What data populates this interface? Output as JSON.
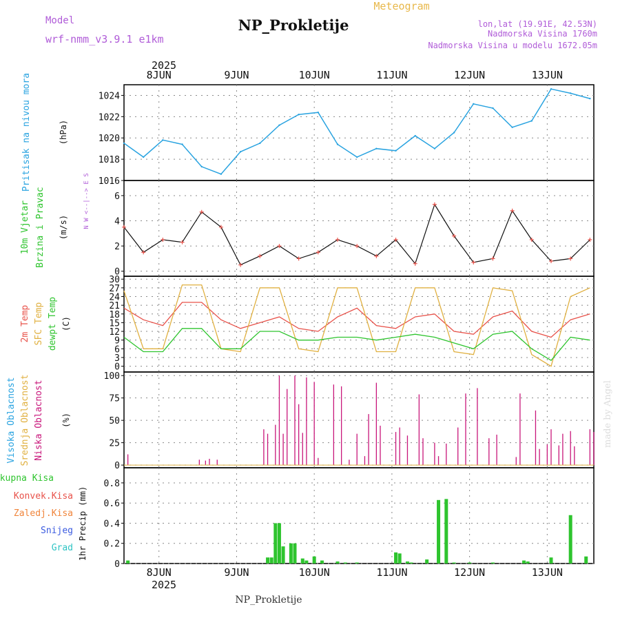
{
  "header": {
    "model_label": "Model",
    "model_name": "wrf-nmm_v3.9.1 e1km",
    "title": "NP_Prokletije",
    "meteogram_label": "Meteogram",
    "lonlat": "lon,lat (19.91E, 42.53N)",
    "altitude": "Nadmorska Visina 1760m",
    "model_altitude": "Nadmorska Visina u modelu 1672.05m",
    "footer_title": "NP_Prokletije",
    "watermark": "made by Angel",
    "year_top": "2025",
    "year_bottom": "2025"
  },
  "colors": {
    "pressure": "#29a3e0",
    "temp2m": "#e8524a",
    "sfctemp": "#e0b040",
    "dewpt": "#2ec42e",
    "low_cloud": "#c8157a",
    "mid_cloud": "#e0b040",
    "high_cloud": "#29a3e0",
    "precip": "#2ec42e",
    "label_purple": "#b05cd8"
  },
  "chart_data": [
    {
      "type": "line",
      "panel": "pressure",
      "label_left": "Pritisak na nivou mora",
      "unit": "(hPa)",
      "ylim": [
        1016,
        1025
      ],
      "yticks": [
        1016,
        1018,
        1020,
        1022,
        1024
      ],
      "x_days": [
        0,
        0.25,
        0.5,
        0.75,
        1.0,
        1.25,
        1.5,
        1.75,
        2.0,
        2.25,
        2.5,
        2.75,
        3.0,
        3.25,
        3.5,
        3.75,
        4.0,
        4.25,
        4.5,
        4.75,
        5.0,
        5.25,
        5.5,
        5.75,
        6.0
      ],
      "values": [
        1019.5,
        1018.2,
        1019.8,
        1019.4,
        1017.3,
        1016.6,
        1018.7,
        1019.5,
        1021.2,
        1022.2,
        1022.4,
        1019.4,
        1018.2,
        1019.0,
        1018.8,
        1020.2,
        1019.0,
        1020.5,
        1023.2,
        1022.8,
        1021.0,
        1021.6,
        1024.6,
        1024.2,
        1023.7
      ]
    },
    {
      "type": "line",
      "panel": "wind",
      "label_left": "10m Vjetar",
      "label_left2": "Brzina i Pravac",
      "unit": "(m/s)",
      "compass": "N  W <--|--> E  S",
      "ylim": [
        -0.4,
        7.2
      ],
      "yticks": [
        0,
        2,
        4,
        6
      ],
      "x_days": [
        0,
        0.25,
        0.5,
        0.75,
        1.0,
        1.25,
        1.5,
        1.75,
        2.0,
        2.25,
        2.5,
        2.75,
        3.0,
        3.25,
        3.5,
        3.75,
        4.0,
        4.25,
        4.5,
        4.75,
        5.0,
        5.25,
        5.5,
        5.75,
        6.0
      ],
      "values": [
        3.5,
        1.5,
        2.5,
        2.3,
        4.7,
        3.5,
        0.5,
        1.2,
        2.0,
        1.0,
        1.5,
        2.5,
        2.0,
        1.2,
        2.5,
        0.6,
        5.3,
        2.8,
        0.7,
        1.0,
        4.8,
        2.5,
        0.8,
        1.0,
        2.5
      ]
    },
    {
      "type": "line",
      "panel": "temperature",
      "label_left": "2m Temp",
      "label_left2": "SFC Temp",
      "label_left3": "dewpt Temp",
      "unit": "(C)",
      "ylim": [
        -2,
        31
      ],
      "yticks": [
        0,
        3,
        6,
        9,
        12,
        15,
        18,
        21,
        24,
        27,
        30
      ],
      "x_days": [
        0,
        0.25,
        0.5,
        0.75,
        1.0,
        1.25,
        1.5,
        1.75,
        2.0,
        2.25,
        2.5,
        2.75,
        3.0,
        3.25,
        3.5,
        3.75,
        4.0,
        4.25,
        4.5,
        4.75,
        5.0,
        5.25,
        5.5,
        5.75,
        6.0
      ],
      "series": [
        {
          "name": "2m Temp",
          "values": [
            20,
            16,
            14,
            22,
            22,
            16,
            13,
            15,
            17,
            13,
            12,
            17,
            20,
            14,
            13,
            17,
            18,
            12,
            11,
            17,
            19,
            12,
            10,
            16,
            18
          ]
        },
        {
          "name": "SFC Temp",
          "values": [
            26,
            6,
            6,
            28,
            28,
            6,
            5,
            27,
            27,
            6,
            5,
            27,
            27,
            5,
            5,
            27,
            27,
            5,
            4,
            27,
            26,
            4,
            0,
            24,
            27
          ]
        },
        {
          "name": "dewpt Temp",
          "values": [
            10,
            5,
            5,
            13,
            13,
            6,
            6,
            12,
            12,
            9,
            9,
            10,
            10,
            9,
            10,
            11,
            10,
            8,
            6,
            11,
            12,
            6,
            2,
            10,
            9
          ]
        }
      ]
    },
    {
      "type": "bar",
      "panel": "cloud",
      "label_left": "Visoka Oblacnost",
      "label_left2": "Srednja Oblacnost",
      "label_left3": "Niska Oblacnost",
      "unit": "(%)",
      "ylim": [
        -3,
        104
      ],
      "yticks": [
        0,
        25,
        50,
        75,
        100
      ],
      "x_days": [
        0.05,
        0.97,
        1.05,
        1.1,
        1.2,
        1.8,
        1.85,
        1.95,
        2.0,
        2.05,
        2.1,
        2.2,
        2.25,
        2.3,
        2.35,
        2.45,
        2.5,
        2.7,
        2.8,
        2.9,
        3.0,
        3.1,
        3.15,
        3.25,
        3.3,
        3.5,
        3.55,
        3.65,
        3.8,
        3.85,
        4.0,
        4.05,
        4.15,
        4.3,
        4.4,
        4.55,
        4.7,
        4.8,
        5.05,
        5.1,
        5.3,
        5.35,
        5.45,
        5.5,
        5.6,
        5.65,
        5.75,
        5.8,
        6.0,
        6.05
      ],
      "values": [
        12,
        6,
        5,
        7,
        6,
        40,
        35,
        45,
        100,
        35,
        85,
        100,
        68,
        36,
        98,
        93,
        8,
        90,
        88,
        6,
        35,
        10,
        57,
        92,
        44,
        37,
        42,
        33,
        79,
        30,
        25,
        10,
        24,
        42,
        80,
        86,
        30,
        34,
        9,
        80,
        61,
        18,
        23,
        40,
        22,
        35,
        38,
        21,
        40,
        37
      ]
    },
    {
      "type": "bar",
      "panel": "precip",
      "label_left": "Ukupna Kisa",
      "label_left2": "Konvek.Kisa",
      "label_left3": "Zaledj.Kisa",
      "label_left4": "Snijeg",
      "label_left5": "Grad",
      "unit": "1hr Precip (mm)",
      "ylim": [
        0,
        0.95
      ],
      "yticks": [
        0,
        0.2,
        0.4,
        0.6,
        0.8
      ],
      "x_days": [
        0.05,
        1.85,
        1.9,
        1.95,
        2.0,
        2.05,
        2.15,
        2.2,
        2.3,
        2.35,
        2.45,
        2.55,
        2.75,
        2.85,
        3.0,
        3.5,
        3.55,
        3.65,
        3.7,
        3.9,
        4.05,
        4.15,
        4.25,
        4.45,
        4.75,
        5.15,
        5.2,
        5.5,
        5.75,
        5.95
      ],
      "values": [
        0.03,
        0.06,
        0.06,
        0.4,
        0.4,
        0.17,
        0.2,
        0.2,
        0.05,
        0.03,
        0.07,
        0.03,
        0.02,
        0.01,
        0.01,
        0.11,
        0.1,
        0.02,
        0.01,
        0.04,
        0.63,
        0.64,
        0.01,
        0.01,
        0.01,
        0.03,
        0.02,
        0.06,
        0.48,
        0.07
      ]
    }
  ],
  "xaxis": {
    "day_labels": [
      "8JUN",
      "9JUN",
      "10JUN",
      "11JUN",
      "12JUN",
      "13JUN"
    ],
    "day_offsets": [
      0.45,
      1.45,
      2.45,
      3.45,
      4.45,
      5.45
    ],
    "range_days": [
      0,
      6.05
    ]
  }
}
